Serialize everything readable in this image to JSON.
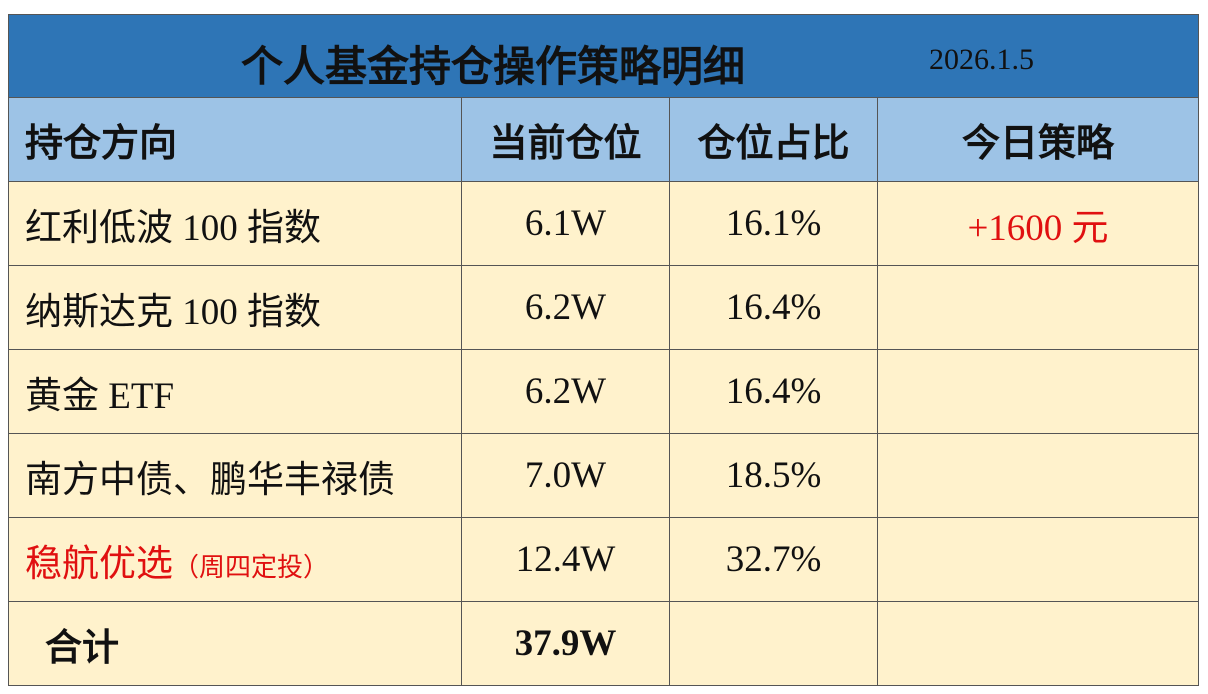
{
  "header": {
    "title": "个人基金持仓操作策略明细",
    "date": "2026.1.5"
  },
  "table": {
    "columns": [
      "持仓方向",
      "当前仓位",
      "仓位占比",
      "今日策略"
    ],
    "rows": [
      {
        "name": "红利低波 100 指数",
        "position": "6.1W",
        "ratio": "16.1%",
        "strategy": "+1600 元"
      },
      {
        "name": "纳斯达克 100 指数",
        "position": "6.2W",
        "ratio": "16.4%"
      },
      {
        "name": "黄金 ETF",
        "position": "6.2W",
        "ratio": "16.4%"
      },
      {
        "name": "南方中债、鹏华丰禄债",
        "position": "7.0W",
        "ratio": "18.5%"
      },
      {
        "name": "稳航优选",
        "note": "（周四定投）",
        "position": "12.4W",
        "ratio": "32.7%"
      },
      {
        "name": "合计",
        "position": "37.9W"
      }
    ]
  }
}
